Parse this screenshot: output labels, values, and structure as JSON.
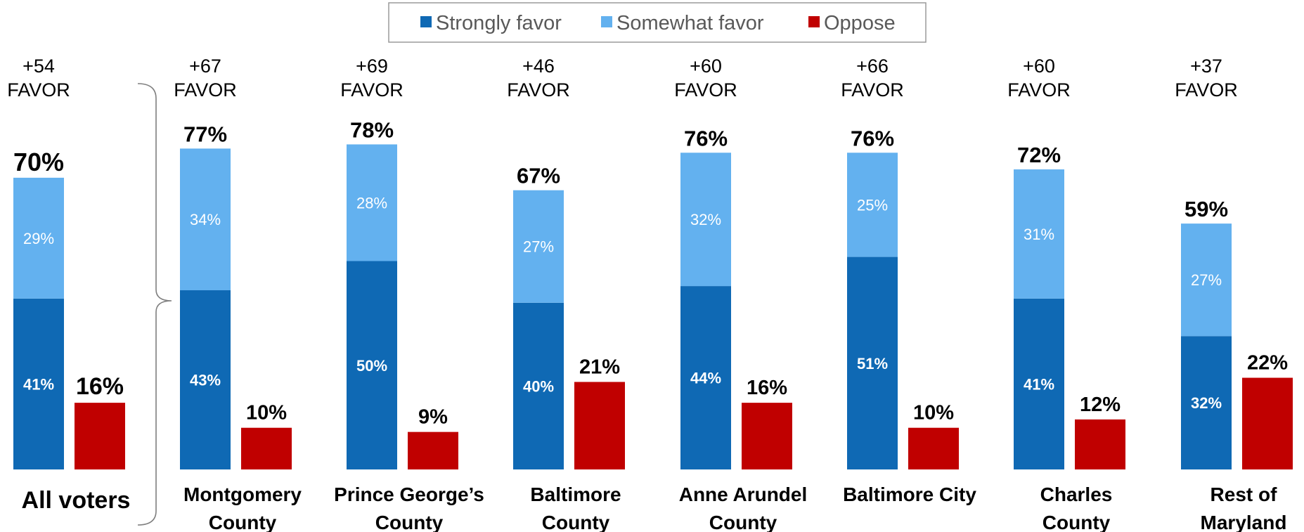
{
  "chart_data": {
    "type": "bar",
    "stacked_favor": true,
    "legend": {
      "position": "top-center",
      "entries": [
        {
          "label": "Strongly favor",
          "color": "#0F69B4"
        },
        {
          "label": "Somewhat favor",
          "color": "#63B1EF"
        },
        {
          "label": "Oppose",
          "color": "#C00000"
        }
      ]
    },
    "categories": [
      {
        "label_lines": [
          "All voters"
        ],
        "net": "+54",
        "net_word": "FAVOR",
        "total_favor": 70,
        "strongly": 41,
        "somewhat": 29,
        "oppose": 16
      },
      {
        "label_lines": [
          "Montgomery",
          "County"
        ],
        "net": "+67",
        "net_word": "FAVOR",
        "total_favor": 77,
        "strongly": 43,
        "somewhat": 34,
        "oppose": 10
      },
      {
        "label_lines": [
          "Prince George’s",
          "County"
        ],
        "net": "+69",
        "net_word": "FAVOR",
        "total_favor": 78,
        "strongly": 50,
        "somewhat": 28,
        "oppose": 9
      },
      {
        "label_lines": [
          "Baltimore",
          "County"
        ],
        "net": "+46",
        "net_word": "FAVOR",
        "total_favor": 67,
        "strongly": 40,
        "somewhat": 27,
        "oppose": 21
      },
      {
        "label_lines": [
          "Anne Arundel",
          "County"
        ],
        "net": "+60",
        "net_word": "FAVOR",
        "total_favor": 76,
        "strongly": 44,
        "somewhat": 32,
        "oppose": 16
      },
      {
        "label_lines": [
          "Baltimore City"
        ],
        "net": "+66",
        "net_word": "FAVOR",
        "total_favor": 76,
        "strongly": 51,
        "somewhat": 25,
        "oppose": 10
      },
      {
        "label_lines": [
          "Charles",
          "County"
        ],
        "net": "+60",
        "net_word": "FAVOR",
        "total_favor": 72,
        "strongly": 41,
        "somewhat": 31,
        "oppose": 12
      },
      {
        "label_lines": [
          "Rest of",
          "Maryland"
        ],
        "net": "+37",
        "net_word": "FAVOR",
        "total_favor": 59,
        "strongly": 32,
        "somewhat": 27,
        "oppose": 22
      }
    ],
    "value_suffix": "%",
    "grid": false
  }
}
